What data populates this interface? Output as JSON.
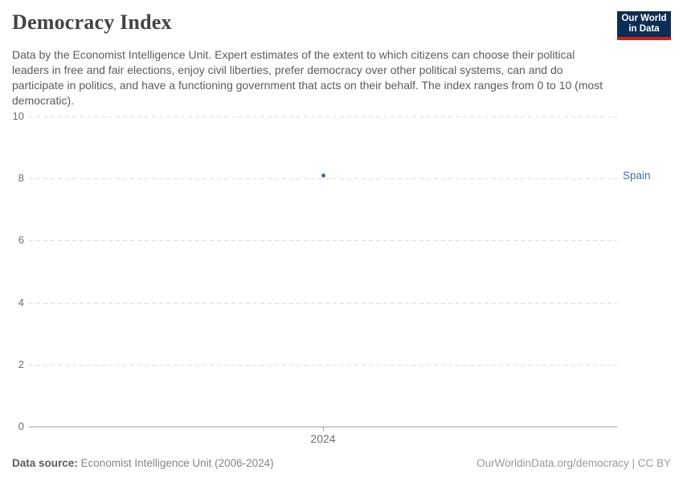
{
  "header": {
    "title": "Democracy Index",
    "logo": {
      "line1": "Our World",
      "line2": "in Data"
    }
  },
  "subtitle": "Data by the Economist Intelligence Unit. Expert estimates of the extent to which citizens can choose their political leaders in free and fair elections, enjoy civil liberties, prefer democracy over other political systems, can and do participate in politics, and have a functioning government that acts on their behalf. The index ranges from 0 to 10 (most democratic).",
  "chart_data": {
    "type": "scatter",
    "title": "Democracy Index",
    "series": [
      {
        "name": "Spain",
        "x": [
          2024
        ],
        "values": [
          8.1
        ],
        "color": "#4c6a9c"
      }
    ],
    "xticks": [
      "2024"
    ],
    "yticks": [
      0,
      2,
      4,
      6,
      8,
      10
    ],
    "ylim": [
      0,
      10
    ],
    "xlabel": "",
    "ylabel": "",
    "grid": "horizontal-dashed",
    "legend_position": "right-entity-label"
  },
  "footer": {
    "source_label": "Data source:",
    "source_value": "Economist Intelligence Unit (2006-2024)",
    "credit": "OurWorldinData.org/democracy | CC BY"
  },
  "colors": {
    "accent_point": "#4c6a9c",
    "logo_navy": "#0d2e54",
    "logo_red": "#cc2417",
    "gridline": "#dcdcdc",
    "axis_line": "#a3a3a3"
  }
}
